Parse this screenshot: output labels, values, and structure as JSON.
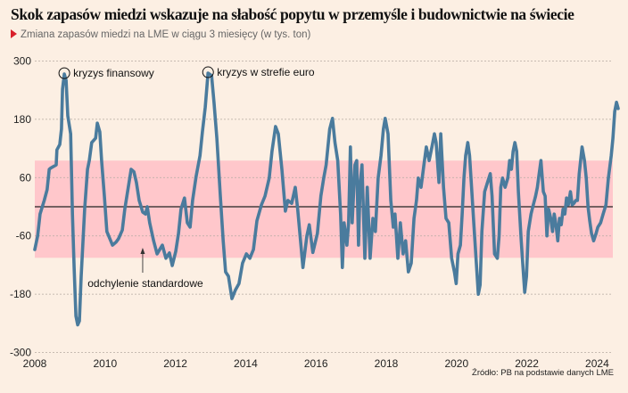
{
  "header": {
    "title": "Skok zapasów miedzi wskazuje na słabość popytu w przemyśle i budownictwie na świecie",
    "subtitle": "Zmiana zapasów miedzi na LME w ciągu 3 miesięcy (w tys. ton)"
  },
  "source": "Źródło: PB na podstawie danych LME",
  "colors": {
    "line": "#4a7b9d",
    "band": "#ffc7cb",
    "background": "#fcefe3",
    "zero_line": "#222222",
    "accent": "#d9202b"
  },
  "chart_data": {
    "type": "line",
    "title": "Skok zapasów miedzi wskazuje na słabość popytu w przemyśle i budownictwie na świecie",
    "subtitle": "Zmiana zapasów miedzi na LME w ciągu 3 miesięcy (w tys. ton)",
    "xlabel": "",
    "ylabel": "",
    "xlim": [
      2008,
      2024.65
    ],
    "ylim": [
      -300,
      300
    ],
    "xticks": [
      2008,
      2010,
      2012,
      2014,
      2016,
      2018,
      2020,
      2022,
      2024
    ],
    "yticks": [
      300,
      180,
      60,
      -60,
      -180,
      -300
    ],
    "grid": "horizontal dashed",
    "std_band": [
      -105,
      95
    ],
    "zero_line": 0,
    "annotations": [
      {
        "label": "kryzys finansowy",
        "x": 2008.84,
        "y": 273
      },
      {
        "label": "kryzys w strefie euro",
        "x": 2012.93,
        "y": 275
      },
      {
        "label": "odchylenie standardowe",
        "x": 2011.07,
        "y": -105
      }
    ],
    "series": [
      {
        "name": "Zmiana zapasów miedzi (tys. ton)",
        "points": [
          [
            2008.0,
            -88
          ],
          [
            2008.08,
            -60
          ],
          [
            2008.15,
            -15
          ],
          [
            2008.27,
            13
          ],
          [
            2008.35,
            35
          ],
          [
            2008.41,
            77
          ],
          [
            2008.46,
            80
          ],
          [
            2008.61,
            86
          ],
          [
            2008.63,
            117
          ],
          [
            2008.71,
            128
          ],
          [
            2008.76,
            160
          ],
          [
            2008.79,
            242
          ],
          [
            2008.84,
            273
          ],
          [
            2008.89,
            260
          ],
          [
            2008.94,
            187
          ],
          [
            2009.02,
            150
          ],
          [
            2009.07,
            -15
          ],
          [
            2009.12,
            -125
          ],
          [
            2009.17,
            -225
          ],
          [
            2009.22,
            -243
          ],
          [
            2009.27,
            -235
          ],
          [
            2009.32,
            -143
          ],
          [
            2009.42,
            -5
          ],
          [
            2009.5,
            77
          ],
          [
            2009.55,
            95
          ],
          [
            2009.62,
            132
          ],
          [
            2009.73,
            141
          ],
          [
            2009.78,
            172
          ],
          [
            2009.85,
            154
          ],
          [
            2009.9,
            95
          ],
          [
            2009.98,
            22
          ],
          [
            2010.05,
            -51
          ],
          [
            2010.16,
            -70
          ],
          [
            2010.21,
            -79
          ],
          [
            2010.31,
            -73
          ],
          [
            2010.38,
            -66
          ],
          [
            2010.49,
            -48
          ],
          [
            2010.56,
            -5
          ],
          [
            2010.66,
            40
          ],
          [
            2010.74,
            77
          ],
          [
            2010.82,
            72
          ],
          [
            2010.89,
            50
          ],
          [
            2010.97,
            13
          ],
          [
            2011.07,
            -11
          ],
          [
            2011.15,
            -15
          ],
          [
            2011.2,
            0
          ],
          [
            2011.27,
            -33
          ],
          [
            2011.38,
            -70
          ],
          [
            2011.48,
            -97
          ],
          [
            2011.63,
            -79
          ],
          [
            2011.73,
            -106
          ],
          [
            2011.83,
            -95
          ],
          [
            2011.91,
            -121
          ],
          [
            2012.01,
            -92
          ],
          [
            2012.09,
            -55
          ],
          [
            2012.16,
            -5
          ],
          [
            2012.26,
            18
          ],
          [
            2012.34,
            -33
          ],
          [
            2012.42,
            -42
          ],
          [
            2012.49,
            13
          ],
          [
            2012.59,
            62
          ],
          [
            2012.7,
            105
          ],
          [
            2012.77,
            154
          ],
          [
            2012.85,
            205
          ],
          [
            2012.93,
            275
          ],
          [
            2013.03,
            270
          ],
          [
            2013.1,
            215
          ],
          [
            2013.18,
            141
          ],
          [
            2013.28,
            22
          ],
          [
            2013.36,
            -70
          ],
          [
            2013.43,
            -134
          ],
          [
            2013.51,
            -143
          ],
          [
            2013.61,
            -189
          ],
          [
            2013.71,
            -171
          ],
          [
            2013.81,
            -158
          ],
          [
            2013.91,
            -116
          ],
          [
            2014.02,
            -97
          ],
          [
            2014.12,
            -106
          ],
          [
            2014.22,
            -88
          ],
          [
            2014.32,
            -29
          ],
          [
            2014.45,
            4
          ],
          [
            2014.55,
            22
          ],
          [
            2014.67,
            59
          ],
          [
            2014.75,
            114
          ],
          [
            2014.85,
            165
          ],
          [
            2014.93,
            150
          ],
          [
            2015.03,
            77
          ],
          [
            2015.13,
            -9
          ],
          [
            2015.2,
            13
          ],
          [
            2015.31,
            7
          ],
          [
            2015.41,
            40
          ],
          [
            2015.48,
            -5
          ],
          [
            2015.56,
            -70
          ],
          [
            2015.63,
            -125
          ],
          [
            2015.74,
            -60
          ],
          [
            2015.81,
            -37
          ],
          [
            2015.91,
            -94
          ],
          [
            2016.04,
            -55
          ],
          [
            2016.14,
            22
          ],
          [
            2016.22,
            59
          ],
          [
            2016.29,
            86
          ],
          [
            2016.39,
            160
          ],
          [
            2016.47,
            182
          ],
          [
            2016.54,
            132
          ],
          [
            2016.62,
            95
          ],
          [
            2016.7,
            -15
          ],
          [
            2016.75,
            -125
          ],
          [
            2016.8,
            -33
          ],
          [
            2016.88,
            -79
          ],
          [
            2016.93,
            -33
          ],
          [
            2016.98,
            123
          ],
          [
            2017.03,
            -33
          ],
          [
            2017.11,
            86
          ],
          [
            2017.16,
            95
          ],
          [
            2017.21,
            -79
          ],
          [
            2017.26,
            50
          ],
          [
            2017.31,
            86
          ],
          [
            2017.39,
            -106
          ],
          [
            2017.46,
            40
          ],
          [
            2017.54,
            -106
          ],
          [
            2017.62,
            -24
          ],
          [
            2017.69,
            -51
          ],
          [
            2017.77,
            59
          ],
          [
            2017.85,
            105
          ],
          [
            2017.92,
            160
          ],
          [
            2017.97,
            182
          ],
          [
            2018.05,
            150
          ],
          [
            2018.13,
            13
          ],
          [
            2018.2,
            -42
          ],
          [
            2018.25,
            -15
          ],
          [
            2018.33,
            -106
          ],
          [
            2018.4,
            -33
          ],
          [
            2018.48,
            -97
          ],
          [
            2018.55,
            -70
          ],
          [
            2018.63,
            -134
          ],
          [
            2018.71,
            -116
          ],
          [
            2018.79,
            -24
          ],
          [
            2018.86,
            13
          ],
          [
            2018.91,
            59
          ],
          [
            2018.99,
            40
          ],
          [
            2019.07,
            86
          ],
          [
            2019.14,
            123
          ],
          [
            2019.22,
            95
          ],
          [
            2019.3,
            123
          ],
          [
            2019.37,
            150
          ],
          [
            2019.42,
            132
          ],
          [
            2019.5,
            50
          ],
          [
            2019.55,
            150
          ],
          [
            2019.63,
            40
          ],
          [
            2019.7,
            -24
          ],
          [
            2019.78,
            -33
          ],
          [
            2019.86,
            -106
          ],
          [
            2019.94,
            -134
          ],
          [
            2019.99,
            -158
          ],
          [
            2020.04,
            -97
          ],
          [
            2020.11,
            -79
          ],
          [
            2020.16,
            -15
          ],
          [
            2020.21,
            59
          ],
          [
            2020.26,
            105
          ],
          [
            2020.32,
            132
          ],
          [
            2020.37,
            105
          ],
          [
            2020.42,
            50
          ],
          [
            2020.49,
            -33
          ],
          [
            2020.57,
            -125
          ],
          [
            2020.62,
            -180
          ],
          [
            2020.67,
            -161
          ],
          [
            2020.72,
            -51
          ],
          [
            2020.8,
            31
          ],
          [
            2020.88,
            50
          ],
          [
            2020.96,
            68
          ],
          [
            2021.01,
            22
          ],
          [
            2021.08,
            -97
          ],
          [
            2021.16,
            -106
          ],
          [
            2021.21,
            -60
          ],
          [
            2021.26,
            40
          ],
          [
            2021.31,
            59
          ],
          [
            2021.38,
            40
          ],
          [
            2021.46,
            59
          ],
          [
            2021.51,
            95
          ],
          [
            2021.56,
            77
          ],
          [
            2021.61,
            114
          ],
          [
            2021.66,
            132
          ],
          [
            2021.71,
            114
          ],
          [
            2021.76,
            31
          ],
          [
            2021.84,
            -70
          ],
          [
            2021.89,
            -125
          ],
          [
            2021.94,
            -176
          ],
          [
            2021.99,
            -143
          ],
          [
            2022.04,
            -51
          ],
          [
            2022.12,
            -15
          ],
          [
            2022.17,
            0
          ],
          [
            2022.25,
            22
          ],
          [
            2022.3,
            40
          ],
          [
            2022.35,
            68
          ],
          [
            2022.4,
            95
          ],
          [
            2022.47,
            31
          ],
          [
            2022.52,
            22
          ],
          [
            2022.57,
            -60
          ],
          [
            2022.62,
            -5
          ],
          [
            2022.68,
            -24
          ],
          [
            2022.73,
            -51
          ],
          [
            2022.78,
            -15
          ],
          [
            2022.83,
            -37
          ],
          [
            2022.88,
            -70
          ],
          [
            2022.93,
            -24
          ],
          [
            2022.98,
            -37
          ],
          [
            2023.03,
            -5
          ],
          [
            2023.08,
            -15
          ],
          [
            2023.13,
            18
          ],
          [
            2023.18,
            4
          ],
          [
            2023.24,
            31
          ],
          [
            2023.29,
            4
          ],
          [
            2023.34,
            7
          ],
          [
            2023.39,
            13
          ],
          [
            2023.44,
            13
          ],
          [
            2023.49,
            68
          ],
          [
            2023.57,
            123
          ],
          [
            2023.64,
            95
          ],
          [
            2023.69,
            59
          ],
          [
            2023.74,
            0
          ],
          [
            2023.79,
            -29
          ],
          [
            2023.84,
            -55
          ],
          [
            2023.9,
            -70
          ],
          [
            2023.97,
            -55
          ],
          [
            2024.02,
            -42
          ],
          [
            2024.1,
            -33
          ],
          [
            2024.17,
            -15
          ],
          [
            2024.25,
            4
          ],
          [
            2024.32,
            59
          ],
          [
            2024.4,
            105
          ],
          [
            2024.45,
            141
          ],
          [
            2024.5,
            196
          ],
          [
            2024.55,
            215
          ],
          [
            2024.6,
            202
          ]
        ]
      }
    ]
  }
}
